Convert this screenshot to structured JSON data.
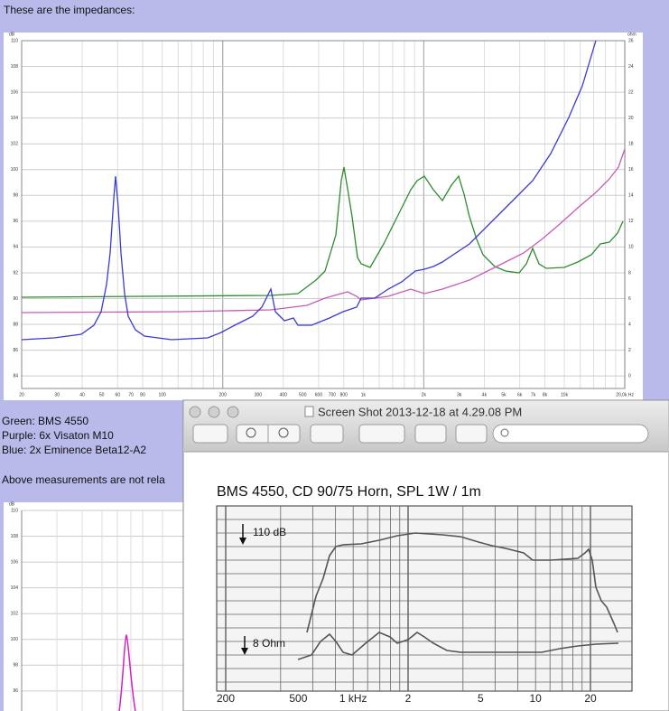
{
  "intro": "These are the impedances:",
  "impedance_chart": {
    "y_left_unit": "dB",
    "y_left_labels": [
      "110",
      "108",
      "106",
      "104",
      "102",
      "100",
      "98",
      "96",
      "94",
      "92",
      "90",
      "88",
      "86",
      "84"
    ],
    "y_right_unit": "ohm",
    "y_right_labels": [
      "26",
      "24",
      "22",
      "20",
      "18",
      "16",
      "14",
      "12",
      "10",
      "8",
      "6",
      "4",
      "2",
      "0"
    ],
    "x_labels": [
      "20",
      "30",
      "40",
      "50",
      "60",
      "70",
      "80",
      "100",
      "200",
      "300",
      "400",
      "500",
      "600",
      "700",
      "800",
      "1k",
      "2k",
      "3k",
      "4k",
      "5k",
      "6k",
      "7k",
      "8k",
      "10k",
      "20,0k Hz"
    ]
  },
  "legend_lines": [
    "Green: BMS 4550",
    "Purple: 6x Visaton M10",
    "Blue: 2x Eminence Beta12-A2"
  ],
  "note": "Above measurements are not rela",
  "second_chart": {
    "y_left_unit": "dB",
    "y_left_labels": [
      "110",
      "108",
      "106",
      "104",
      "102",
      "100",
      "98",
      "96"
    ]
  },
  "window": {
    "title": "Screen Shot 2013-12-18 at 4.29.08 PM",
    "image_title": "BMS 4550, CD 90/75 Horn, SPL 1W / 1m",
    "curve_labels": [
      "110 dB",
      "8 Ohm"
    ],
    "x_labels": [
      "200",
      "500",
      "1 kHz",
      "2",
      "5",
      "10",
      "20"
    ]
  }
}
